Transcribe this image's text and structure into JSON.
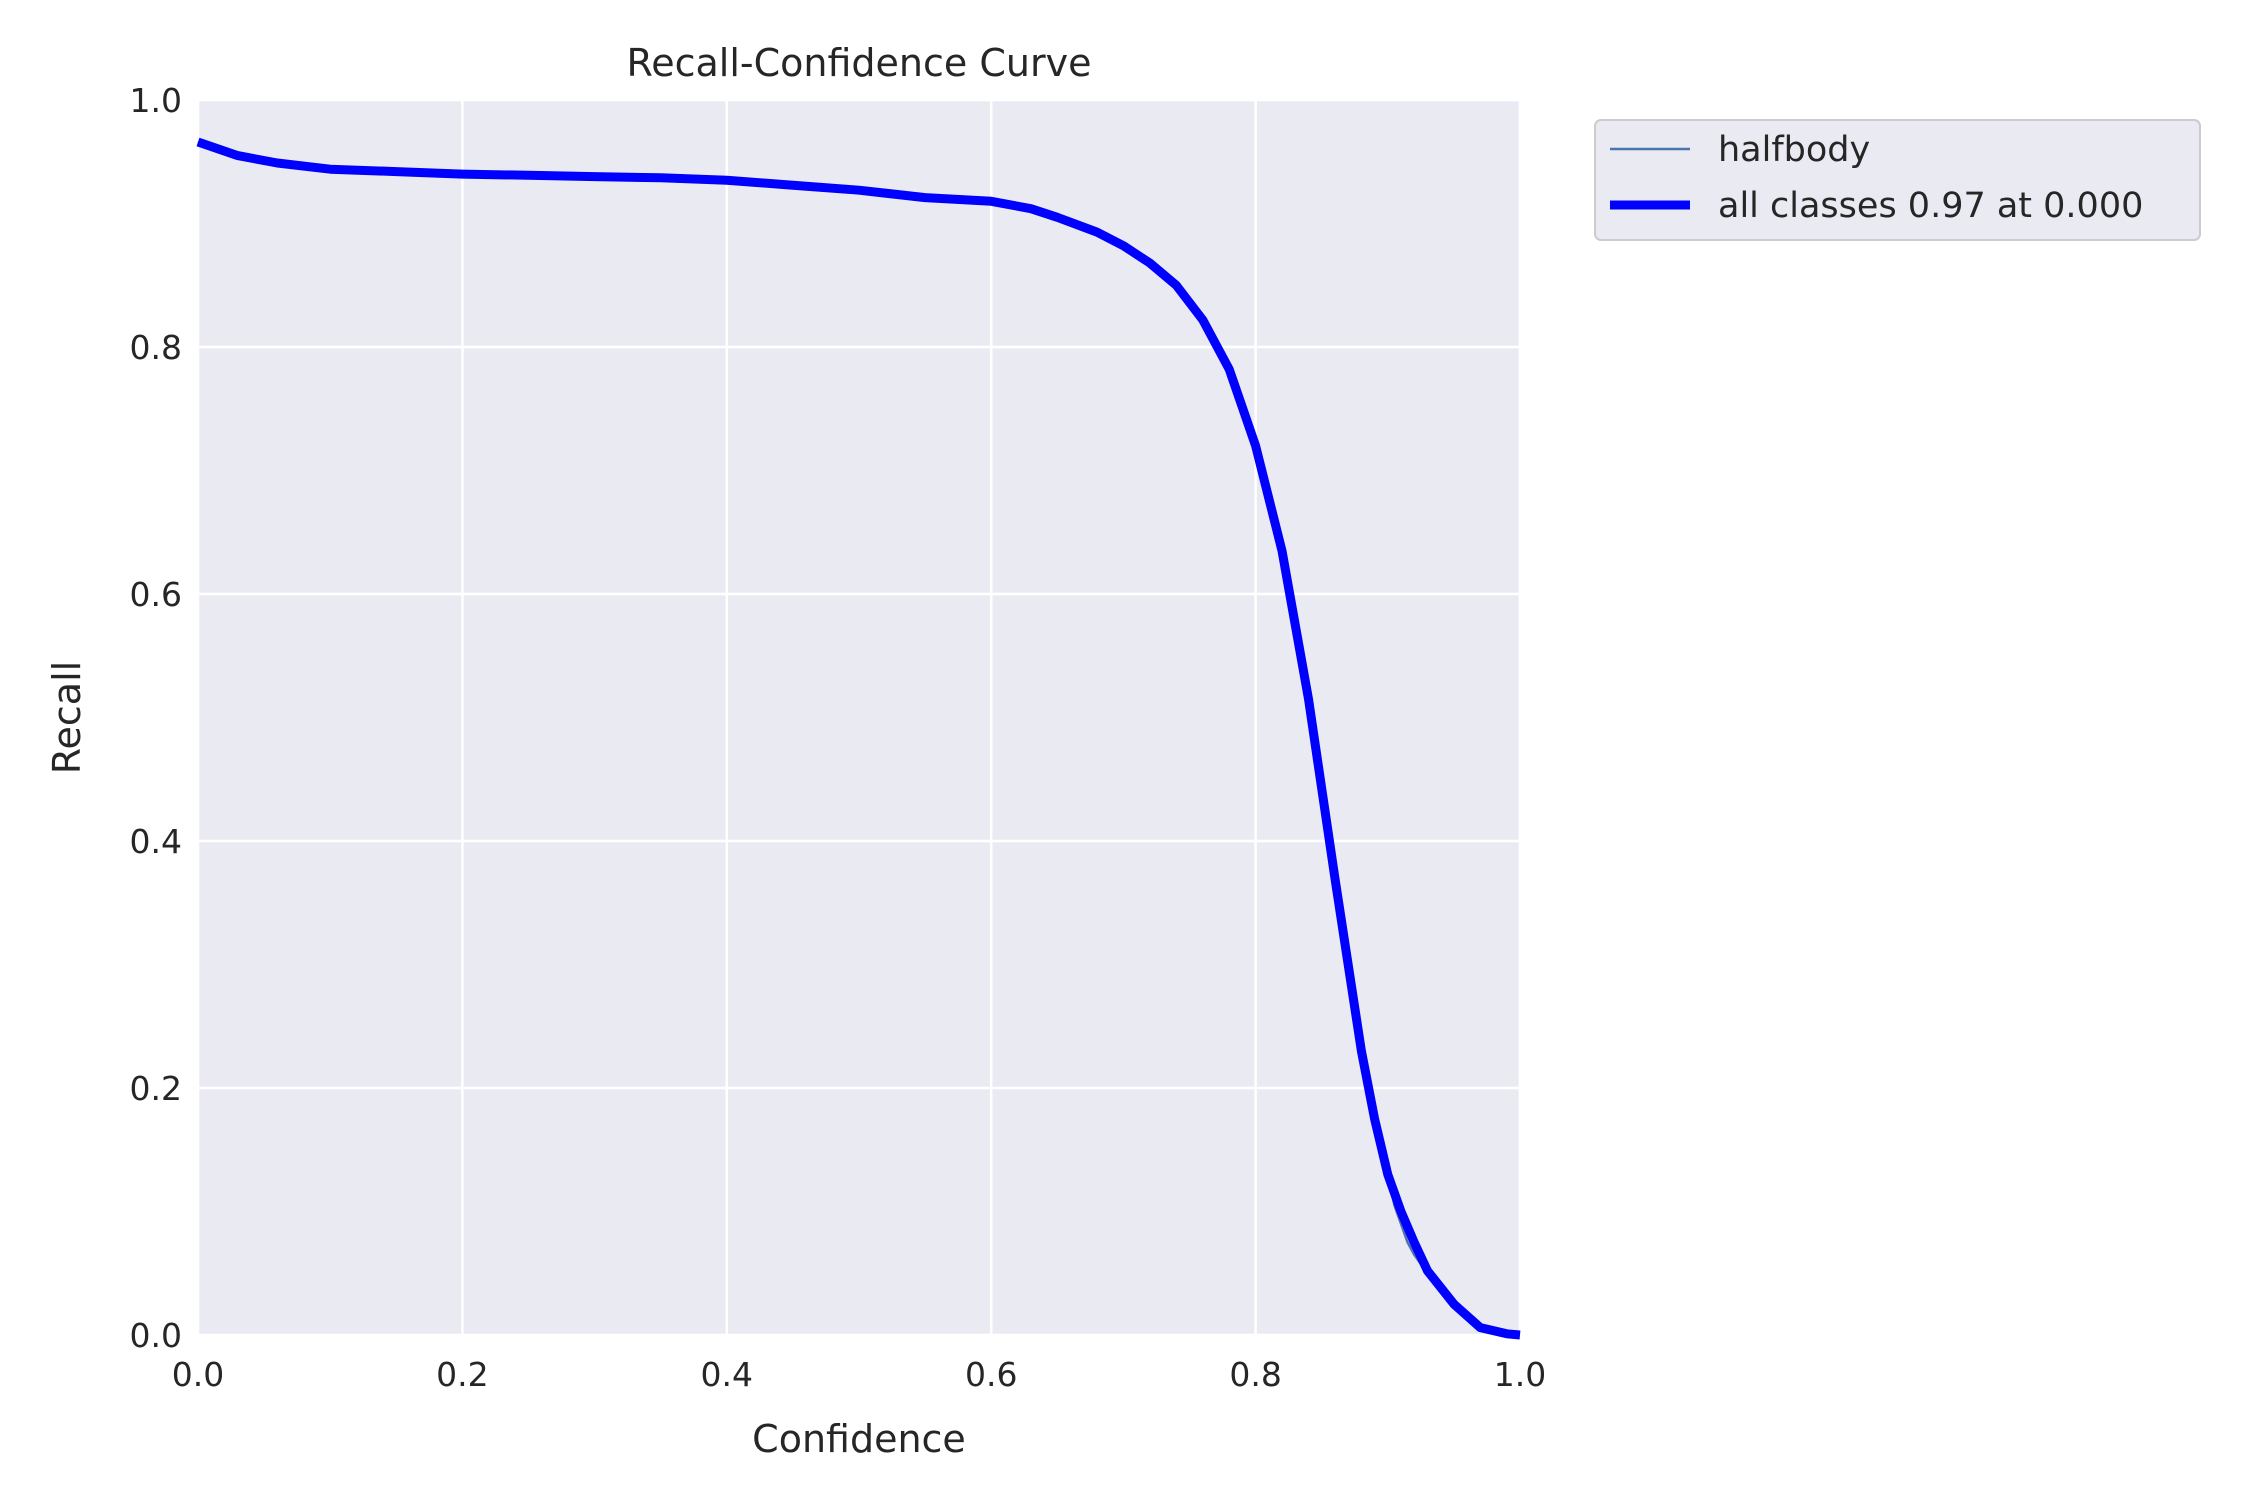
{
  "chart_data": {
    "type": "line",
    "title": "Recall-Confidence Curve",
    "xlabel": "Confidence",
    "ylabel": "Recall",
    "xlim": [
      0,
      1
    ],
    "ylim": [
      0,
      1
    ],
    "xticks": [
      "0.0",
      "0.2",
      "0.4",
      "0.6",
      "0.8",
      "1.0"
    ],
    "yticks": [
      "0.0",
      "0.2",
      "0.4",
      "0.6",
      "0.8",
      "1.0"
    ],
    "grid": true,
    "legend_position": "outside-upper-right",
    "background": "#eaeaf2",
    "gridline_color": "#ffffff",
    "series": [
      {
        "name": "halfbody",
        "color": "#4c72b0",
        "x": [
          0.0,
          0.03,
          0.06,
          0.1,
          0.15,
          0.2,
          0.25,
          0.3,
          0.35,
          0.4,
          0.45,
          0.5,
          0.55,
          0.6,
          0.63,
          0.65,
          0.68,
          0.7,
          0.72,
          0.74,
          0.76,
          0.78,
          0.8,
          0.82,
          0.84,
          0.86,
          0.88,
          0.89,
          0.9,
          0.905,
          0.91,
          0.915,
          0.92,
          0.93,
          0.95,
          0.97,
          0.99,
          1.0
        ],
        "y": [
          0.966,
          0.955,
          0.949,
          0.944,
          0.942,
          0.94,
          0.939,
          0.938,
          0.937,
          0.935,
          0.931,
          0.927,
          0.921,
          0.918,
          0.912,
          0.905,
          0.893,
          0.882,
          0.868,
          0.85,
          0.822,
          0.782,
          0.72,
          0.635,
          0.515,
          0.37,
          0.23,
          0.175,
          0.13,
          0.105,
          0.09,
          0.075,
          0.065,
          0.05,
          0.025,
          0.006,
          0.001,
          0.0
        ]
      },
      {
        "name": "all classes 0.97 at 0.000",
        "color": "#0000ff",
        "x": [
          0.0,
          0.03,
          0.06,
          0.1,
          0.15,
          0.2,
          0.25,
          0.3,
          0.35,
          0.4,
          0.45,
          0.5,
          0.55,
          0.6,
          0.63,
          0.65,
          0.68,
          0.7,
          0.72,
          0.74,
          0.76,
          0.78,
          0.8,
          0.82,
          0.84,
          0.86,
          0.88,
          0.89,
          0.9,
          0.91,
          0.92,
          0.93,
          0.95,
          0.97,
          0.99,
          1.0
        ],
        "y": [
          0.966,
          0.955,
          0.949,
          0.944,
          0.942,
          0.94,
          0.939,
          0.938,
          0.937,
          0.935,
          0.931,
          0.927,
          0.921,
          0.918,
          0.912,
          0.905,
          0.893,
          0.882,
          0.868,
          0.85,
          0.822,
          0.782,
          0.72,
          0.635,
          0.515,
          0.37,
          0.23,
          0.175,
          0.13,
          0.1,
          0.075,
          0.052,
          0.025,
          0.006,
          0.001,
          0.0
        ]
      }
    ]
  }
}
